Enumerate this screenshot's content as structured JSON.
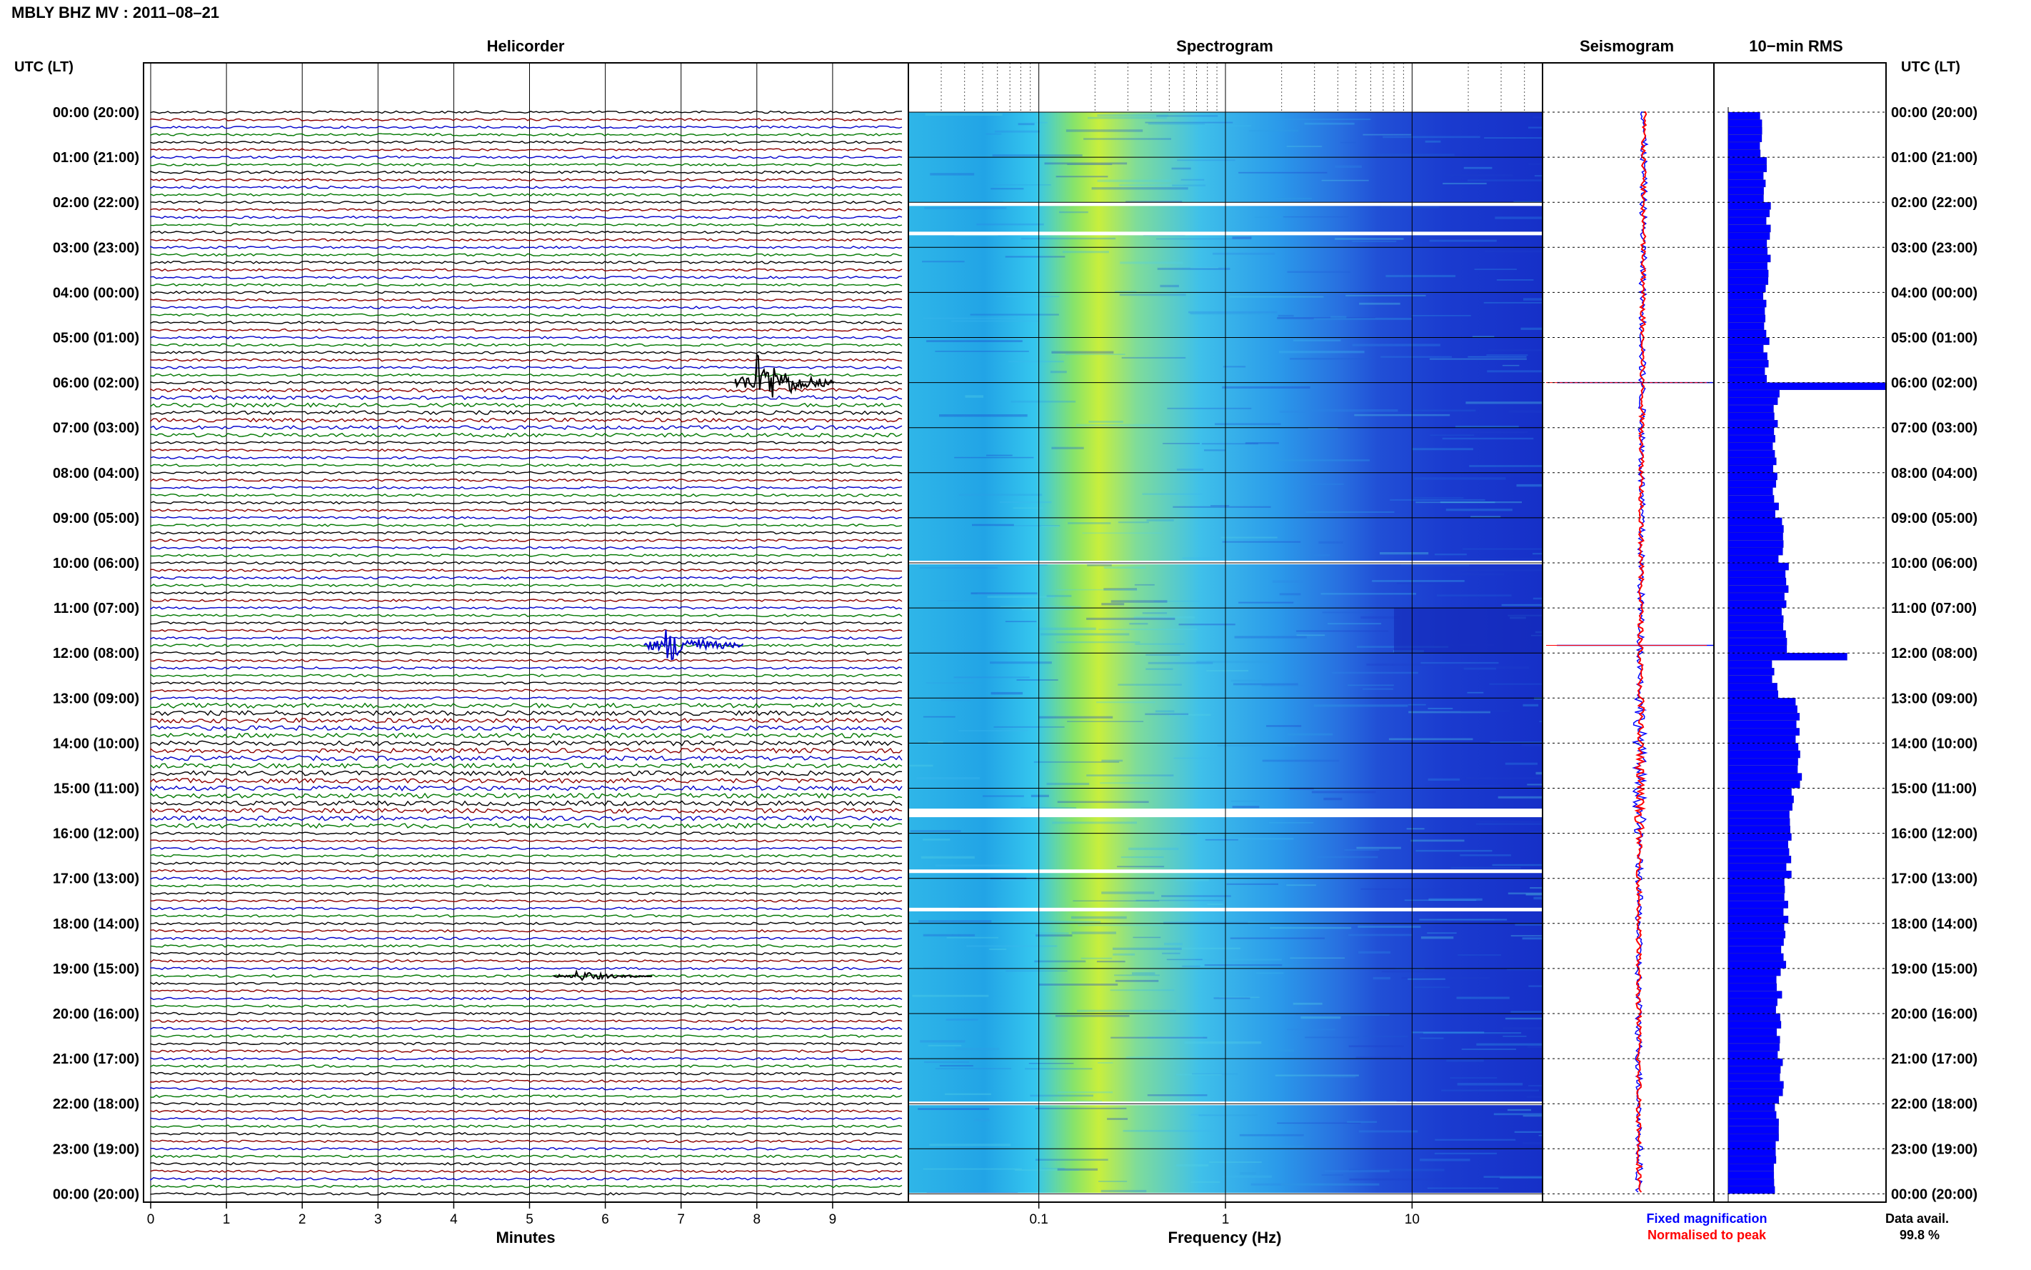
{
  "station_title": "MBLY BHZ MV : 2011–08–21",
  "timezone_header": "UTC (LT)",
  "panels": {
    "helicorder": "Helicorder",
    "spectrogram": "Spectrogram",
    "seismogram": "Seismogram",
    "rms": "10−min RMS"
  },
  "footer": {
    "fixed_magnification": "Fixed magnification",
    "normalised_to_peak": "Normalised to peak",
    "data_avail_label": "Data avail.",
    "data_avail_value": "99.8 %"
  },
  "colors": {
    "trace_cycle": [
      "#000000",
      "#8b0000",
      "#0000cc",
      "#007700"
    ],
    "rms_bar": "#0000ff",
    "seismogram_fixed": "#0000ff",
    "seismogram_normalised": "#ff0000",
    "grid": "#000000"
  },
  "chart_data": [
    {
      "type": "line",
      "panel": "Helicorder",
      "xlabel": "Minutes",
      "x_ticks": [
        "0",
        "1",
        "2",
        "3",
        "4",
        "5",
        "6",
        "7",
        "8",
        "9"
      ],
      "xlim": [
        0,
        10
      ],
      "y_tick_labels_left": [
        "00:00 (20:00)",
        "01:00 (21:00)",
        "02:00 (22:00)",
        "03:00 (23:00)",
        "04:00 (00:00)",
        "05:00 (01:00)",
        "06:00 (02:00)",
        "07:00 (03:00)",
        "08:00 (04:00)",
        "09:00 (05:00)",
        "10:00 (06:00)",
        "11:00 (07:00)",
        "12:00 (08:00)",
        "13:00 (09:00)",
        "14:00 (10:00)",
        "15:00 (11:00)",
        "16:00 (12:00)",
        "17:00 (13:00)",
        "18:00 (14:00)",
        "19:00 (15:00)",
        "20:00 (16:00)",
        "21:00 (17:00)",
        "22:00 (18:00)",
        "23:00 (19:00)",
        "00:00 (20:00)"
      ],
      "traces_per_hour": 6,
      "events": [
        {
          "hour": 6.0,
          "minute": 8.0,
          "color": "#000000",
          "amplitude": "large"
        },
        {
          "hour": 11.83,
          "minute": 6.8,
          "color": "#0000cc",
          "amplitude": "medium"
        },
        {
          "hour": 19.17,
          "minute": 5.6,
          "color": "#000000",
          "amplitude": "small"
        }
      ]
    },
    {
      "type": "heatmap",
      "panel": "Spectrogram",
      "xlabel": "Frequency (Hz)",
      "x_scale": "log",
      "xlim": [
        0.02,
        50
      ],
      "x_ticks": [
        "0.1",
        "1",
        "10"
      ],
      "colormap": "jet",
      "gap_hours": [
        2.05,
        2.7,
        10.0,
        15.5,
        16.85,
        17.7,
        22.0
      ]
    },
    {
      "type": "line",
      "panel": "Seismogram",
      "spikes_hours": [
        6.0,
        11.83
      ],
      "series": [
        {
          "name": "Fixed magnification",
          "color": "#0000ff"
        },
        {
          "name": "Normalised to peak",
          "color": "#ff0000"
        }
      ]
    },
    {
      "type": "bar",
      "panel": "10−min RMS",
      "orientation": "horizontal",
      "y_tick_labels_right": [
        "00:00 (20:00)",
        "01:00 (21:00)",
        "02:00 (22:00)",
        "03:00 (23:00)",
        "04:00 (00:00)",
        "05:00 (01:00)",
        "06:00 (02:00)",
        "07:00 (03:00)",
        "08:00 (04:00)",
        "09:00 (05:00)",
        "10:00 (06:00)",
        "11:00 (07:00)",
        "12:00 (08:00)",
        "13:00 (09:00)",
        "14:00 (10:00)",
        "15:00 (11:00)",
        "16:00 (12:00)",
        "17:00 (13:00)",
        "18:00 (14:00)",
        "19:00 (15:00)",
        "20:00 (16:00)",
        "21:00 (17:00)",
        "22:00 (18:00)",
        "23:00 (19:00)",
        "00:00 (20:00)"
      ],
      "values_per_hour": [
        0.2,
        0.23,
        0.25,
        0.25,
        0.24,
        0.24,
        1.0,
        0.3,
        0.3,
        0.33,
        0.37,
        0.35,
        0.75,
        0.44,
        0.45,
        0.4,
        0.38,
        0.36,
        0.35,
        0.32,
        0.32,
        0.33,
        0.3,
        0.3
      ]
    }
  ]
}
